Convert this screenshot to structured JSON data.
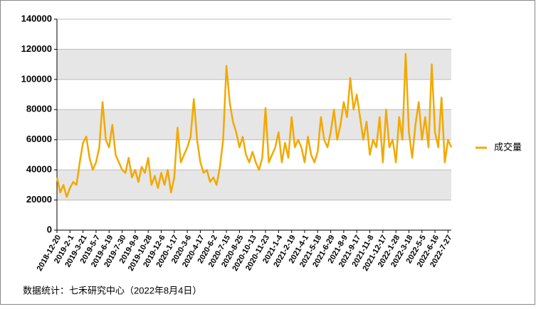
{
  "chart_data": {
    "type": "line",
    "categories": [
      "2018-12-20",
      null,
      null,
      null,
      "2019-2-1",
      null,
      null,
      null,
      "2019-3-21",
      null,
      null,
      null,
      "2019-5-7",
      null,
      null,
      null,
      "2019-6-19",
      null,
      null,
      null,
      "2019-7-30",
      null,
      null,
      null,
      "2019-9-9",
      null,
      null,
      null,
      "2019-10-28",
      null,
      null,
      null,
      "2019-12-6",
      null,
      null,
      null,
      "2020-1-17",
      null,
      null,
      null,
      "2020-3-6",
      null,
      null,
      null,
      "2020-4-17",
      null,
      null,
      null,
      "2020-6-2",
      null,
      null,
      null,
      "2020-7-15",
      null,
      null,
      null,
      "2020-8-25",
      null,
      null,
      null,
      "2020-10-13",
      null,
      null,
      null,
      "2020-11-23",
      null,
      null,
      null,
      "2021-1-4",
      null,
      null,
      null,
      "2021-2-19",
      null,
      null,
      null,
      "2021-4-1",
      null,
      null,
      null,
      "2021-5-18",
      null,
      null,
      null,
      "2021-6-29",
      null,
      null,
      null,
      "2021-8-9",
      null,
      null,
      null,
      "2021-9-17",
      null,
      null,
      null,
      "2021-11-8",
      null,
      null,
      null,
      "2021-12-17",
      null,
      null,
      null,
      "2022-1-28",
      null,
      null,
      null,
      "2022-3-18",
      null,
      null,
      null,
      "2022-5-5",
      null,
      null,
      null,
      "2022-6-16",
      null,
      null,
      null,
      "2022-7-27",
      null
    ],
    "series": [
      {
        "name": "成交量",
        "color": "#f2a900",
        "values": [
          35000,
          25000,
          30000,
          22000,
          28000,
          32000,
          30000,
          45000,
          58000,
          62000,
          48000,
          40000,
          45000,
          55000,
          85000,
          60000,
          55000,
          70000,
          50000,
          45000,
          40000,
          38000,
          48000,
          35000,
          40000,
          32000,
          42000,
          38000,
          48000,
          30000,
          36000,
          28000,
          38000,
          30000,
          40000,
          25000,
          35000,
          68000,
          45000,
          50000,
          55000,
          62000,
          87000,
          60000,
          45000,
          38000,
          40000,
          32000,
          35000,
          30000,
          42000,
          60000,
          109000,
          85000,
          72000,
          65000,
          55000,
          62000,
          50000,
          45000,
          52000,
          45000,
          40000,
          48000,
          81000,
          45000,
          50000,
          55000,
          65000,
          45000,
          58000,
          48000,
          75000,
          55000,
          60000,
          55000,
          45000,
          62000,
          50000,
          45000,
          52000,
          75000,
          60000,
          55000,
          65000,
          80000,
          60000,
          70000,
          85000,
          75000,
          101000,
          80000,
          90000,
          75000,
          60000,
          72000,
          50000,
          60000,
          55000,
          75000,
          45000,
          80000,
          55000,
          60000,
          45000,
          75000,
          60000,
          117000,
          65000,
          48000,
          70000,
          85000,
          60000,
          75000,
          55000,
          110000,
          65000,
          55000,
          88000,
          45000,
          60000,
          55000
        ]
      }
    ],
    "ylim": [
      0,
      140000
    ],
    "yticks": [
      0,
      20000,
      40000,
      60000,
      80000,
      100000,
      120000,
      140000
    ],
    "grid": true,
    "legend": "right",
    "footnote": "数据统计：七禾研究中心（2022年8月4日）"
  }
}
